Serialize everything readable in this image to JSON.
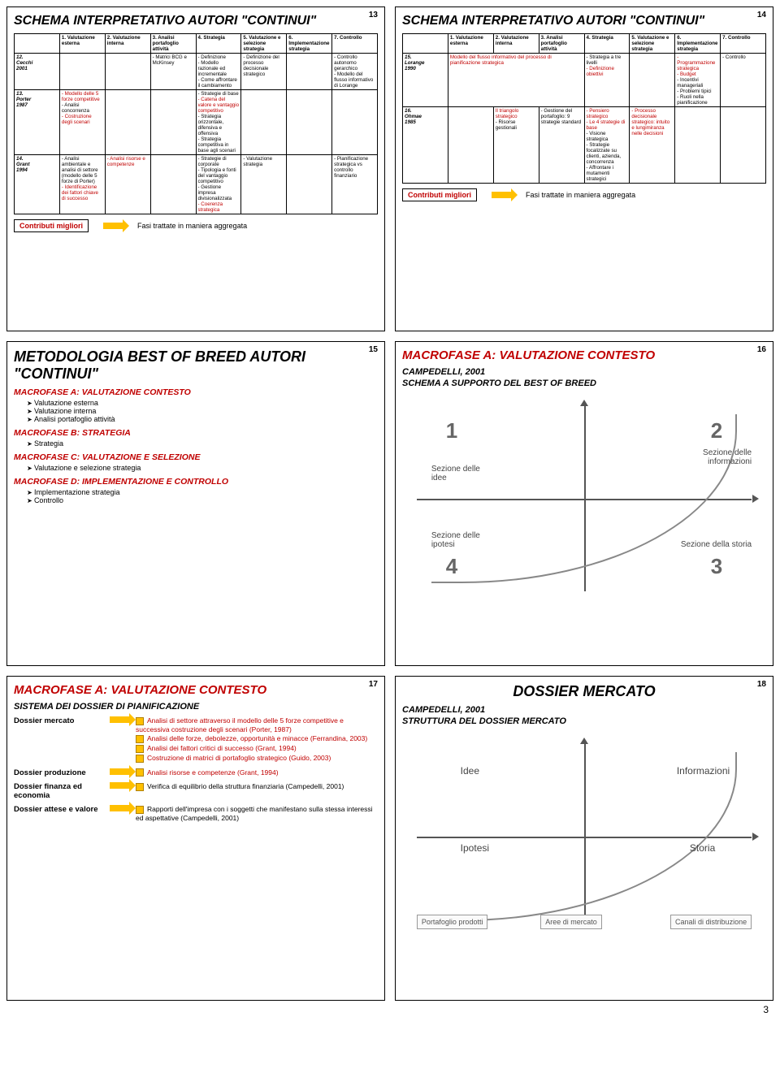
{
  "pageNumber": "3",
  "slides": {
    "s13": {
      "num": "13",
      "title": "SCHEMA INTERPRETATIVO AUTORI \"CONTINUI\"",
      "headers": [
        "",
        "1. Valutazione esterna",
        "2. Valutazione interna",
        "3. Analisi portafoglio attività",
        "4. Strategia",
        "5. Valutazione e selezione strategia",
        "6. Implementazione strategia",
        "7. Controllo"
      ],
      "rows": [
        {
          "label": "12.\nCecchi\n2001",
          "cells": [
            "",
            "",
            "- Matrici BCG e McKinsey",
            "- Definizione\n- Modello razionale ed incrementale\n- Come affrontare il cambiamento",
            "- Definizione del processo decisionale strategico",
            "",
            "- Controllo autonomo gerarchico\n- Modello del flusso informativo di Lorange"
          ]
        },
        {
          "label": "13.\nPorter\n1987",
          "cells": [
            "- Modello delle 5 forze competitive\n- Analisi concorrenza\n- Costruzione degli scenari",
            "",
            "",
            "- Strategie di base\n- Catena del valore e vantaggio competitivo\n- Strategia orizzontale, difensiva e offensiva\n- Strategia competitiva in base agli scenari",
            "",
            "",
            ""
          ]
        },
        {
          "label": "14.\nGrant\n1994",
          "cells": [
            "- Analisi ambientale e analisi di settore (modello delle 5 forze di Porter)\n- Identificazione dei fattori chiave di successo",
            "- Analisi risorse e competenze",
            "",
            "- Strategie di corporate\n- Tipologia e fonti del vantaggio competitivo\n- Gestione impresa divisionalizzata\n- Coerenza strategica",
            "- Valutazione strategia",
            "",
            "- Pianificazione strategica vs controllo finanziario"
          ]
        }
      ],
      "footerLeft": "Contributi migliori",
      "footerRight": "Fasi trattate in maniera aggregata"
    },
    "s14": {
      "num": "14",
      "title": "SCHEMA INTERPRETATIVO AUTORI \"CONTINUI\"",
      "headers": [
        "",
        "1. Valutazione esterna",
        "2. Valutazione interna",
        "3. Analisi portafoglio attività",
        "4. Strategia",
        "5. Valutazione e selezione strategia",
        "6. Implementazione strategia",
        "7. Controllo"
      ],
      "rows": [
        {
          "label": "15.\nLorange\n1990",
          "span": "Modello del flusso informativo del processo di pianificazione strategica",
          "cells": [
            "",
            "",
            "",
            "- Strategia a tre livelli\n- Definizione obiettivi",
            "",
            "- Programmazione strategica\n- Budget\n- Incentivi manageriali\n- Problemi tipici\n- Ruoli nella pianificazione",
            "- Controllo"
          ]
        },
        {
          "label": "16.\nOhmae\n1985",
          "cells": [
            "",
            "Il triangolo strategico\n- Risorse gestionali",
            "- Gestione del portafoglio: 9 strategie standard",
            "- Pensiero strategico\n- Le 4 strategie di base\n- Visione strategica\n- Strategie focalizzate su clienti, azienda, concorrenza\n- Affrontare i mutamenti strategici",
            "- Processo decisionale strategico: intuito e lungimiranza nelle decisioni",
            "",
            ""
          ]
        }
      ],
      "footerLeft": "Contributi migliori",
      "footerRight": "Fasi trattate in maniera aggregata"
    },
    "s15": {
      "num": "15",
      "title": "METODOLOGIA BEST OF BREED AUTORI \"CONTINUI\"",
      "macA": "MACROFASE  A: VALUTAZIONE CONTESTO",
      "macA_items": [
        "Valutazione esterna",
        "Valutazione interna",
        "Analisi portafoglio attività"
      ],
      "macB": "MACROFASE  B: STRATEGIA",
      "macB_items": [
        "Strategia"
      ],
      "macC": "MACROFASE  C: VALUTAZIONE E SELEZIONE",
      "macC_items": [
        "Valutazione e selezione strategia"
      ],
      "macD": "MACROFASE  D: IMPLEMENTAZIONE E CONTROLLO",
      "macD_items": [
        "Implementazione strategia",
        "Controllo"
      ]
    },
    "s16": {
      "num": "16",
      "title": "MACROFASE  A: VALUTAZIONE CONTESTO",
      "sub1": "CAMPEDELLI, 2001",
      "sub2": "SCHEMA A SUPPORTO DEL BEST OF BREED",
      "q1": "1",
      "q2": "2",
      "q3": "3",
      "q4": "4",
      "l1": "Sezione delle idee",
      "l2": "Sezione delle informazioni",
      "l3": "Sezione della storia",
      "l4": "Sezione delle ipotesi"
    },
    "s17": {
      "num": "17",
      "title": "MACROFASE  A: VALUTAZIONE CONTESTO",
      "sub": "SISTEMA DEI DOSSIER DI PIANIFICAZIONE",
      "rows": [
        {
          "lbl": "Dossier mercato",
          "items": [
            {
              "t": "Analisi di settore attraverso il modello delle 5 forze competitive e successiva costruzione degli scenari (Porter, 1987)",
              "red": true
            },
            {
              "t": "Analisi delle forze, debolezze, opportunità e minacce (Ferrandina, 2003)",
              "red": true
            },
            {
              "t": "Analisi dei fattori critici di successo (Grant, 1994)",
              "red": true
            },
            {
              "t": "Costruzione di matrici di portafoglio strategico (Guido, 2003)",
              "red": true
            }
          ]
        },
        {
          "lbl": "Dossier produzione",
          "items": [
            {
              "t": "Analisi risorse e competenze (Grant, 1994)",
              "red": true
            }
          ]
        },
        {
          "lbl": "Dossier finanza ed economia",
          "items": [
            {
              "t": "Verifica di equilibrio della struttura finanziaria (Campedelli, 2001)",
              "red": false
            }
          ]
        },
        {
          "lbl": "Dossier attese e valore",
          "items": [
            {
              "t": "Rapporti dell'impresa con i soggetti che manifestano sulla stessa interessi ed aspettative (Campedelli, 2001)",
              "red": false
            }
          ]
        }
      ]
    },
    "s18": {
      "num": "18",
      "title": "DOSSIER MERCATO",
      "sub1": "CAMPEDELLI, 2001",
      "sub2": "STRUTTURA DEL DOSSIER MERCATO",
      "tl": "Idee",
      "tr": "Informazioni",
      "bl": "Ipotesi",
      "br": "Storia",
      "b1": "Portafoglio prodotti",
      "b2": "Aree di mercato",
      "b3": "Canali di distribuzione"
    }
  },
  "colors": {
    "red": "#c00000",
    "orange": "#ffc000",
    "grey": "#666666"
  }
}
